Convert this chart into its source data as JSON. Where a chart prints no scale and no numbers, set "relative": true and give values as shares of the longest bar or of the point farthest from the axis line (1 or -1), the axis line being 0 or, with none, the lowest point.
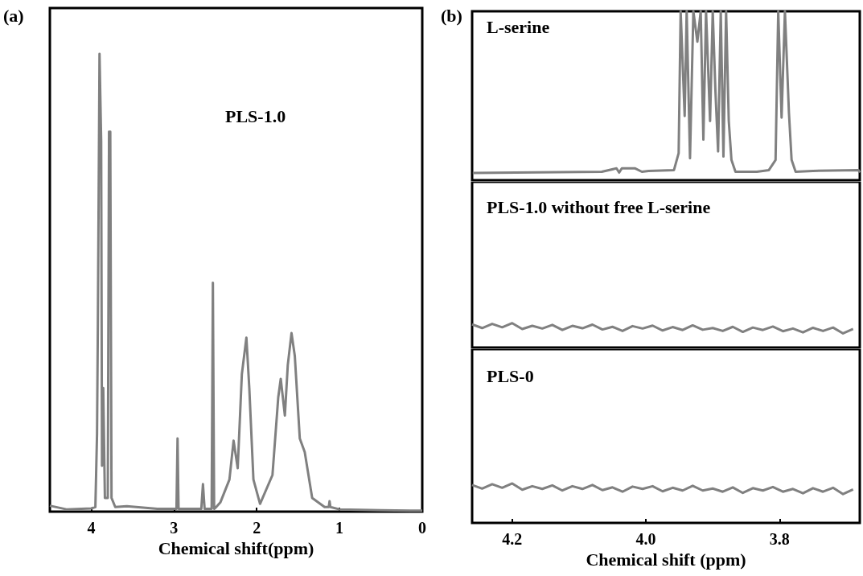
{
  "chart_data": [
    {
      "type": "line",
      "title": "(a)",
      "xlabel": "Chemical shift(ppm)",
      "annotations": [
        "PLS-1.0"
      ],
      "relative": true,
      "xlim": [
        4.5,
        0
      ],
      "xticks": [
        4,
        3,
        2,
        1,
        0
      ],
      "marker": "none",
      "line_style": "solid",
      "series": [
        {
          "color": "#808080",
          "x": [
            4.5,
            4.3,
            4.0,
            3.95,
            3.93,
            3.92,
            3.9,
            3.88,
            3.87,
            3.866,
            3.855,
            3.835,
            3.8,
            3.785,
            3.77,
            3.755,
            3.71,
            3.57,
            3.2,
            2.97,
            2.957,
            2.945,
            2.8,
            2.67,
            2.65,
            2.63,
            2.545,
            2.53,
            2.515,
            2.49,
            2.44,
            2.33,
            2.28,
            2.23,
            2.18,
            2.125,
            2.09,
            2.04,
            1.96,
            1.81,
            1.74,
            1.71,
            1.66,
            1.625,
            1.58,
            1.54,
            1.48,
            1.42,
            1.33,
            1.18,
            1.13,
            1.12,
            1.11,
            1.0,
            0.5,
            0
          ],
          "values": [
            0.013,
            0.005,
            0.007,
            0.01,
            0.17,
            0.41,
            1.0,
            0.81,
            0.1,
            0.1,
            0.27,
            0.03,
            0.03,
            0.83,
            0.83,
            0.03,
            0.01,
            0.012,
            0.006,
            0.006,
            0.16,
            0.006,
            0.006,
            0.006,
            0.06,
            0.006,
            0.006,
            0.5,
            0.006,
            0.01,
            0.02,
            0.07,
            0.155,
            0.095,
            0.3,
            0.38,
            0.27,
            0.07,
            0.017,
            0.08,
            0.25,
            0.29,
            0.21,
            0.32,
            0.39,
            0.34,
            0.16,
            0.13,
            0.03,
            0.01,
            0.01,
            0.023,
            0.01,
            0.005,
            0.003,
            0.002
          ]
        }
      ]
    },
    {
      "type": "line",
      "title": "(b)",
      "annotations": [
        "L-serine"
      ],
      "relative": true,
      "xlim": [
        4.26,
        3.68
      ],
      "tick_labels": false,
      "marker": "none",
      "line_style": "solid",
      "series": [
        {
          "color": "#808080",
          "x": [
            4.259,
            4.066,
            4.044,
            4.04,
            4.036,
            4.026,
            4.016,
            4.006,
            3.996,
            3.958,
            3.951,
            3.948,
            3.942,
            3.939,
            3.934,
            3.929,
            3.923,
            3.918,
            3.914,
            3.91,
            3.904,
            3.9,
            3.896,
            3.892,
            3.888,
            3.884,
            3.88,
            3.876,
            3.872,
            3.866,
            3.834,
            3.816,
            3.806,
            3.802,
            3.797,
            3.792,
            3.786,
            3.782,
            3.776,
            3.75,
            3.682,
            3.68
          ],
          "values": [
            0.043,
            0.05,
            0.07,
            0.045,
            0.07,
            0.07,
            0.07,
            0.05,
            0.055,
            0.06,
            0.16,
            1,
            0.38,
            1,
            0.13,
            1,
            0.82,
            1,
            0.24,
            1,
            0.35,
            1,
            0.53,
            0.17,
            1,
            0.14,
            1,
            0.35,
            0.12,
            0.05,
            0.05,
            0.06,
            0.12,
            1,
            0.37,
            1,
            0.4,
            0.12,
            0.05,
            0.055,
            0.06,
            0.045
          ]
        }
      ]
    },
    {
      "type": "line",
      "annotations": [
        "PLS-1.0 without free L-serine"
      ],
      "relative": true,
      "xlim": [
        4.26,
        3.68
      ],
      "tick_labels": false,
      "marker": "none",
      "line_style": "solid",
      "series": [
        {
          "color": "#808080",
          "x": [
            4.26,
            4.245,
            4.23,
            4.215,
            4.2,
            4.185,
            4.17,
            4.155,
            4.14,
            4.125,
            4.11,
            4.095,
            4.08,
            4.065,
            4.05,
            4.035,
            4.02,
            4.005,
            3.99,
            3.975,
            3.96,
            3.945,
            3.93,
            3.915,
            3.9,
            3.885,
            3.87,
            3.855,
            3.84,
            3.825,
            3.81,
            3.795,
            3.78,
            3.765,
            3.75,
            3.735,
            3.72,
            3.705,
            3.69
          ],
          "values": [
            0.95,
            0.8,
            0.97,
            0.83,
            1,
            0.76,
            0.89,
            0.78,
            0.93,
            0.72,
            0.89,
            0.79,
            0.94,
            0.74,
            0.85,
            0.68,
            0.88,
            0.78,
            0.9,
            0.7,
            0.84,
            0.72,
            0.91,
            0.73,
            0.8,
            0.68,
            0.85,
            0.64,
            0.82,
            0.72,
            0.86,
            0.67,
            0.78,
            0.62,
            0.81,
            0.68,
            0.82,
            0.58,
            0.76
          ]
        }
      ]
    },
    {
      "type": "line",
      "xlabel": "Chemical shift (ppm)",
      "annotations": [
        "PLS-0"
      ],
      "relative": true,
      "xlim": [
        4.26,
        3.68
      ],
      "xticks": [
        4.2,
        {
          "value": 4,
          "label": "4.0"
        },
        3.8
      ],
      "tick_labels": "x",
      "marker": "none",
      "line_style": "solid",
      "series": [
        {
          "color": "#808080",
          "x": [
            4.26,
            4.245,
            4.23,
            4.215,
            4.2,
            4.185,
            4.17,
            4.155,
            4.14,
            4.125,
            4.11,
            4.095,
            4.08,
            4.065,
            4.05,
            4.035,
            4.02,
            4.005,
            3.99,
            3.975,
            3.96,
            3.945,
            3.93,
            3.915,
            3.9,
            3.885,
            3.87,
            3.855,
            3.84,
            3.825,
            3.81,
            3.795,
            3.78,
            3.765,
            3.75,
            3.735,
            3.72,
            3.705,
            3.69
          ],
          "values": [
            0.96,
            0.87,
            0.98,
            0.89,
            1,
            0.84,
            0.93,
            0.86,
            0.95,
            0.82,
            0.93,
            0.86,
            0.96,
            0.83,
            0.9,
            0.79,
            0.92,
            0.86,
            0.93,
            0.8,
            0.89,
            0.82,
            0.94,
            0.82,
            0.87,
            0.79,
            0.9,
            0.76,
            0.88,
            0.82,
            0.91,
            0.79,
            0.86,
            0.75,
            0.88,
            0.79,
            0.89,
            0.73,
            0.85
          ]
        }
      ]
    }
  ]
}
